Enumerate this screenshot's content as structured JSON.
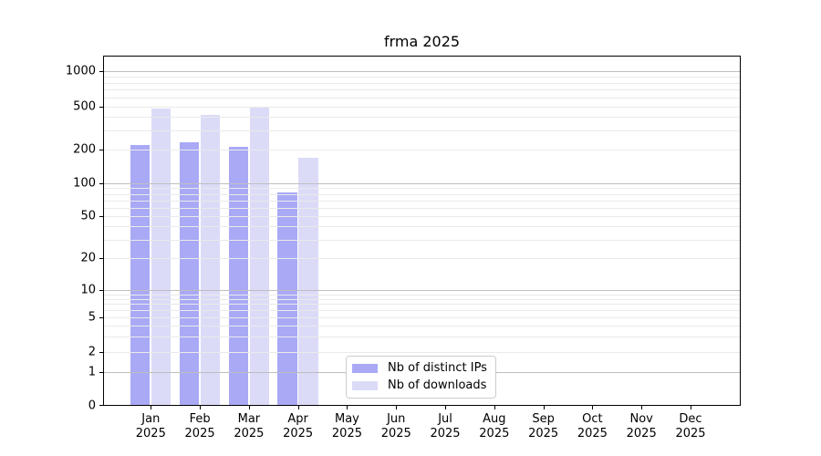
{
  "title": "frma 2025",
  "colors": {
    "ips_bar": "#a9a9f6",
    "downloads_bar": "#dbdbf8",
    "grid_major": "#bebebe",
    "grid_minor": "#eaeaea",
    "spine": "#000000",
    "legend_border": "#cccccc",
    "background": "#ffffff"
  },
  "legend": {
    "items": [
      {
        "label": "Nb of distinct IPs",
        "color_key": "ips_bar"
      },
      {
        "label": "Nb of downloads",
        "color_key": "downloads_bar"
      }
    ]
  },
  "y_axis": {
    "ticks": [
      0,
      1,
      2,
      5,
      10,
      20,
      50,
      100,
      200,
      500,
      1000
    ],
    "scale": "symlog"
  },
  "x_axis": {
    "months": [
      "Jan",
      "Feb",
      "Mar",
      "Apr",
      "May",
      "Jun",
      "Jul",
      "Aug",
      "Sep",
      "Oct",
      "Nov",
      "Dec"
    ],
    "year": "2025"
  },
  "chart_data": {
    "type": "bar",
    "title": "frma 2025",
    "categories": [
      "Jan 2025",
      "Feb 2025",
      "Mar 2025",
      "Apr 2025",
      "May 2025",
      "Jun 2025",
      "Jul 2025",
      "Aug 2025",
      "Sep 2025",
      "Oct 2025",
      "Nov 2025",
      "Dec 2025"
    ],
    "series": [
      {
        "name": "Nb of distinct IPs",
        "color": "#a9a9f6",
        "values": [
          220,
          235,
          210,
          82,
          null,
          null,
          null,
          null,
          null,
          null,
          null,
          null
        ]
      },
      {
        "name": "Nb of downloads",
        "color": "#dbdbf8",
        "values": [
          480,
          420,
          490,
          170,
          null,
          null,
          null,
          null,
          null,
          null,
          null,
          null
        ]
      }
    ],
    "xlabel": "",
    "ylabel": "",
    "yticks": [
      0,
      1,
      2,
      5,
      10,
      20,
      50,
      100,
      200,
      500,
      1000
    ],
    "yscale": "symlog",
    "ylim_top_approx": 1450,
    "grid": "horizontal, minor log gridlines, grid drawn above bars",
    "legend_position": "inside lower-center"
  }
}
